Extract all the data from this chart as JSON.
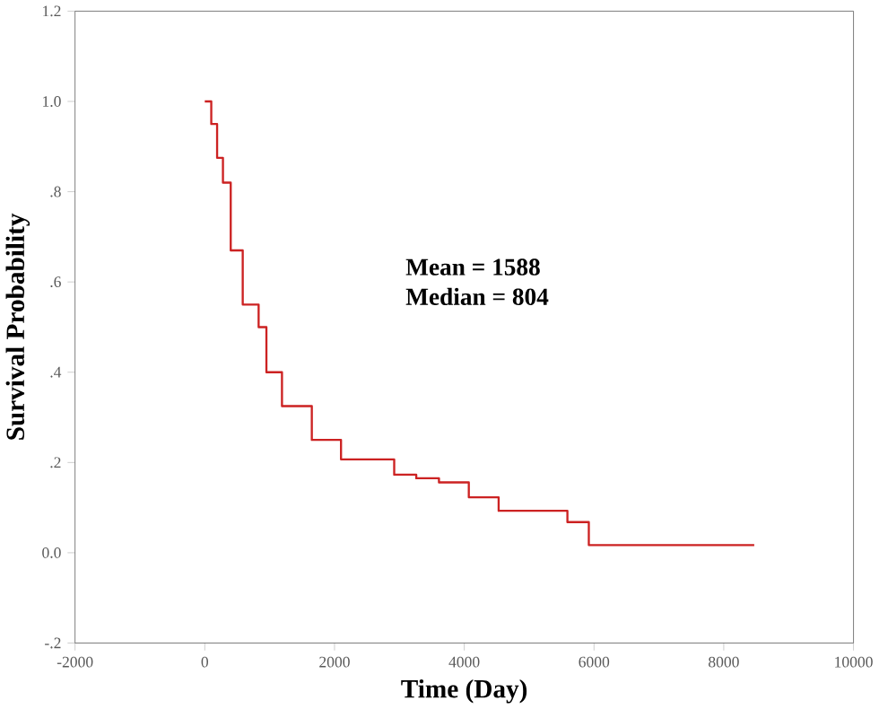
{
  "chart_data": {
    "type": "step",
    "xlabel": "Time (Day)",
    "ylabel": "Survival Probability",
    "annotations": [
      "Mean = 1588",
      "Median = 804"
    ],
    "xlim": [
      -2000,
      10000
    ],
    "xticks": [
      -2000,
      0,
      2000,
      4000,
      6000,
      8000,
      10000
    ],
    "ylim": [
      -0.2,
      1.2
    ],
    "yticks": [
      {
        "value": -0.2,
        "label": "-.2"
      },
      {
        "value": 0,
        "label": "0.0"
      },
      {
        "value": 0.2,
        "label": ".2"
      },
      {
        "value": 0.4,
        "label": ".4"
      },
      {
        "value": 0.6,
        "label": ".6"
      },
      {
        "value": 0.8,
        "label": ".8"
      },
      {
        "value": 1.0,
        "label": "1.0"
      },
      {
        "value": 1.2,
        "label": "1.2"
      }
    ],
    "grid": false,
    "marker": "none",
    "line_style": "solid",
    "series": [
      {
        "color": "#cc2222",
        "x": [
          0,
          100,
          190,
          280,
          400,
          585,
          830,
          950,
          1190,
          1650,
          2100,
          2920,
          3260,
          3610,
          4070,
          4530,
          5290,
          5590,
          5920,
          8470
        ],
        "values": [
          1.0,
          0.95,
          0.875,
          0.82,
          0.67,
          0.55,
          0.5,
          0.4,
          0.325,
          0.25,
          0.207,
          0.173,
          0.165,
          0.156,
          0.123,
          0.093,
          0.093,
          0.068,
          0.017,
          0.017
        ]
      }
    ]
  }
}
